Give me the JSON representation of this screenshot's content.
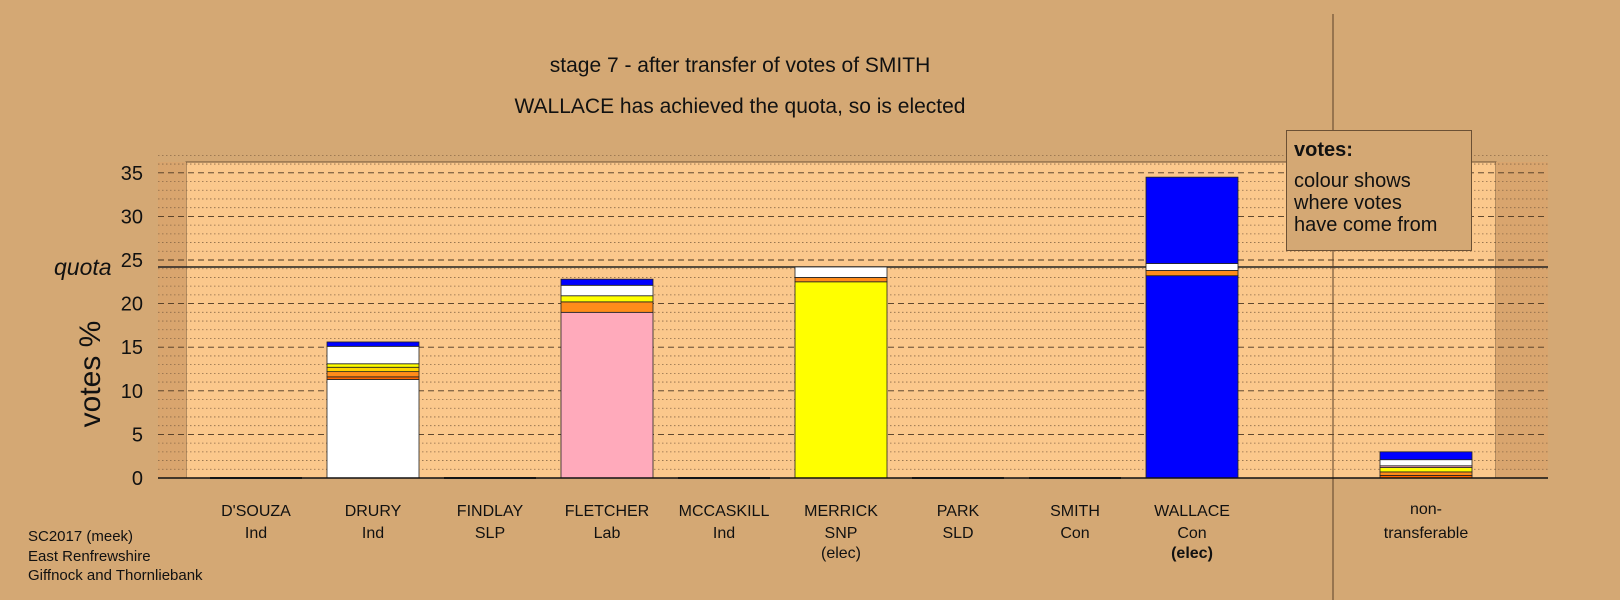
{
  "title": "stage 7 - after transfer of votes of SMITH",
  "subtitle": "WALLACE has achieved the quota, so is elected",
  "footer": [
    "SC2017 (meek)",
    "East Renfrewshire",
    "Giffnock and Thornliebank"
  ],
  "legend": {
    "title": "votes:",
    "lines": [
      "colour shows",
      "where votes",
      "have come from"
    ]
  },
  "colors": {
    "background": "#d4a874",
    "plot_area": "#fbc88c",
    "Ind": "#ffffff",
    "Lab": "#ffaabb",
    "SNP": "#ffff00",
    "Con": "#0000ff",
    "SLD": "#ff8c1a",
    "SLP": "#ff6600"
  },
  "chart_data": {
    "type": "bar",
    "stacked": true,
    "ylabel": "votes %",
    "ylim": [
      0,
      36
    ],
    "yticks": [
      0,
      5,
      10,
      15,
      20,
      25,
      30,
      35
    ],
    "quota": 24.2,
    "quota_label": "quota",
    "grid": true,
    "candidates": [
      {
        "name": "D'SOUZA",
        "party": "Ind",
        "status": "",
        "segments": []
      },
      {
        "name": "DRURY",
        "party": "Ind",
        "status": "",
        "segments": [
          {
            "from": "DRURY",
            "color": "#ffffff",
            "value": 11.3
          },
          {
            "from": "SLP",
            "color": "#ff6600",
            "value": 0.3
          },
          {
            "from": "SLD",
            "color": "#ff8c1a",
            "value": 0.6
          },
          {
            "from": "PARK",
            "color": "#ffd700",
            "value": 0.5
          },
          {
            "from": "SNP",
            "color": "#ffff00",
            "value": 0.4
          },
          {
            "from": "D'SOUZA/MCCASKILL",
            "color": "#ffffff",
            "value": 2.0
          },
          {
            "from": "Con",
            "color": "#0000ff",
            "value": 0.5
          }
        ]
      },
      {
        "name": "FINDLAY",
        "party": "SLP",
        "status": "",
        "segments": []
      },
      {
        "name": "FLETCHER",
        "party": "Lab",
        "status": "",
        "segments": [
          {
            "from": "FLETCHER",
            "color": "#ffaabb",
            "value": 19.0
          },
          {
            "from": "SLD",
            "color": "#ff8c1a",
            "value": 1.2
          },
          {
            "from": "SNP",
            "color": "#ffff00",
            "value": 0.7
          },
          {
            "from": "Ind",
            "color": "#ffffff",
            "value": 1.2
          },
          {
            "from": "Con",
            "color": "#0000ff",
            "value": 0.7
          }
        ]
      },
      {
        "name": "MCCASKILL",
        "party": "Ind",
        "status": "",
        "segments": []
      },
      {
        "name": "MERRICK",
        "party": "SNP",
        "status": "(elec)",
        "segments": [
          {
            "from": "MERRICK",
            "color": "#ffff00",
            "value": 22.5
          },
          {
            "from": "SLD",
            "color": "#ff8c1a",
            "value": 0.5
          },
          {
            "from": "Ind",
            "color": "#ffffff",
            "value": 1.2
          }
        ]
      },
      {
        "name": "PARK",
        "party": "SLD",
        "status": "",
        "segments": []
      },
      {
        "name": "SMITH",
        "party": "Con",
        "status": "",
        "segments": []
      },
      {
        "name": "WALLACE",
        "party": "Con",
        "status": "(elec)",
        "segments": [
          {
            "from": "WALLACE",
            "color": "#0000ff",
            "value": 23.2
          },
          {
            "from": "SLD",
            "color": "#ff8c1a",
            "value": 0.6
          },
          {
            "from": "Ind",
            "color": "#ffffff",
            "value": 0.8
          },
          {
            "from": "SMITH",
            "color": "#0000ff",
            "value": 9.9
          }
        ]
      }
    ],
    "nontransferable": {
      "label": [
        "non-",
        "transferable"
      ],
      "segments": [
        {
          "from": "SLP",
          "color": "#ff6600",
          "value": 0.3
        },
        {
          "from": "SLD",
          "color": "#ff8c1a",
          "value": 0.4
        },
        {
          "from": "SNP",
          "color": "#ffff00",
          "value": 0.5
        },
        {
          "from": "Lab",
          "color": "#ffaabb",
          "value": 0.2
        },
        {
          "from": "Ind",
          "color": "#ffffff",
          "value": 0.7
        },
        {
          "from": "Con",
          "color": "#0000ff",
          "value": 0.9
        }
      ]
    }
  }
}
